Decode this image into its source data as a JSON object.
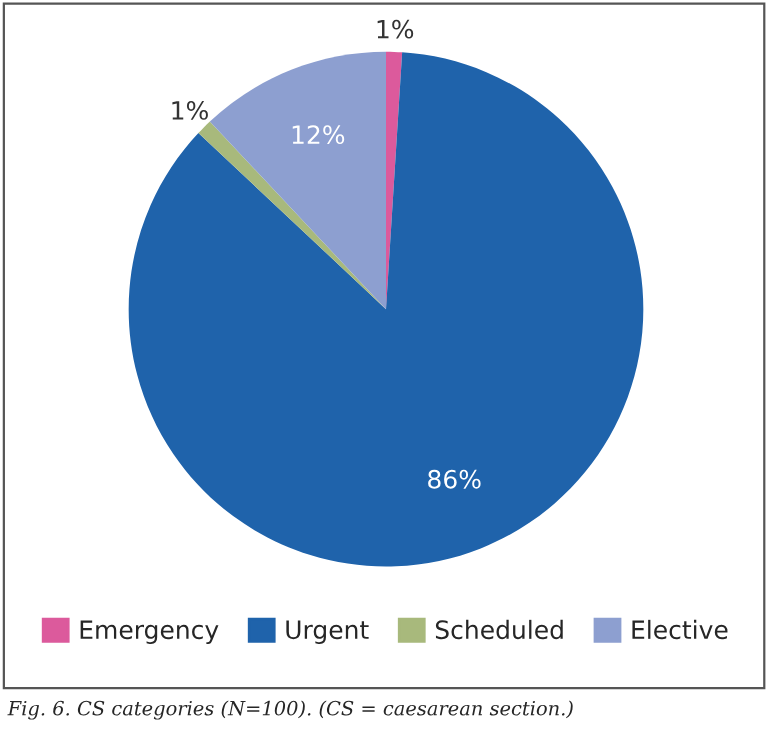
{
  "chart_data": {
    "type": "pie",
    "categories": [
      "Emergency",
      "Urgent",
      "Scheduled",
      "Elective"
    ],
    "values": [
      1,
      86,
      1,
      12
    ],
    "colors": [
      "#dc5a9c",
      "#1f63ab",
      "#a8b97c",
      "#8d9fd0"
    ],
    "value_labels": [
      "1%",
      "86%",
      "1%",
      "12%"
    ],
    "legend": "bottom",
    "annotations": [
      "Fig. 6. CS categories (N=100). (CS = caesarean section.)"
    ]
  }
}
